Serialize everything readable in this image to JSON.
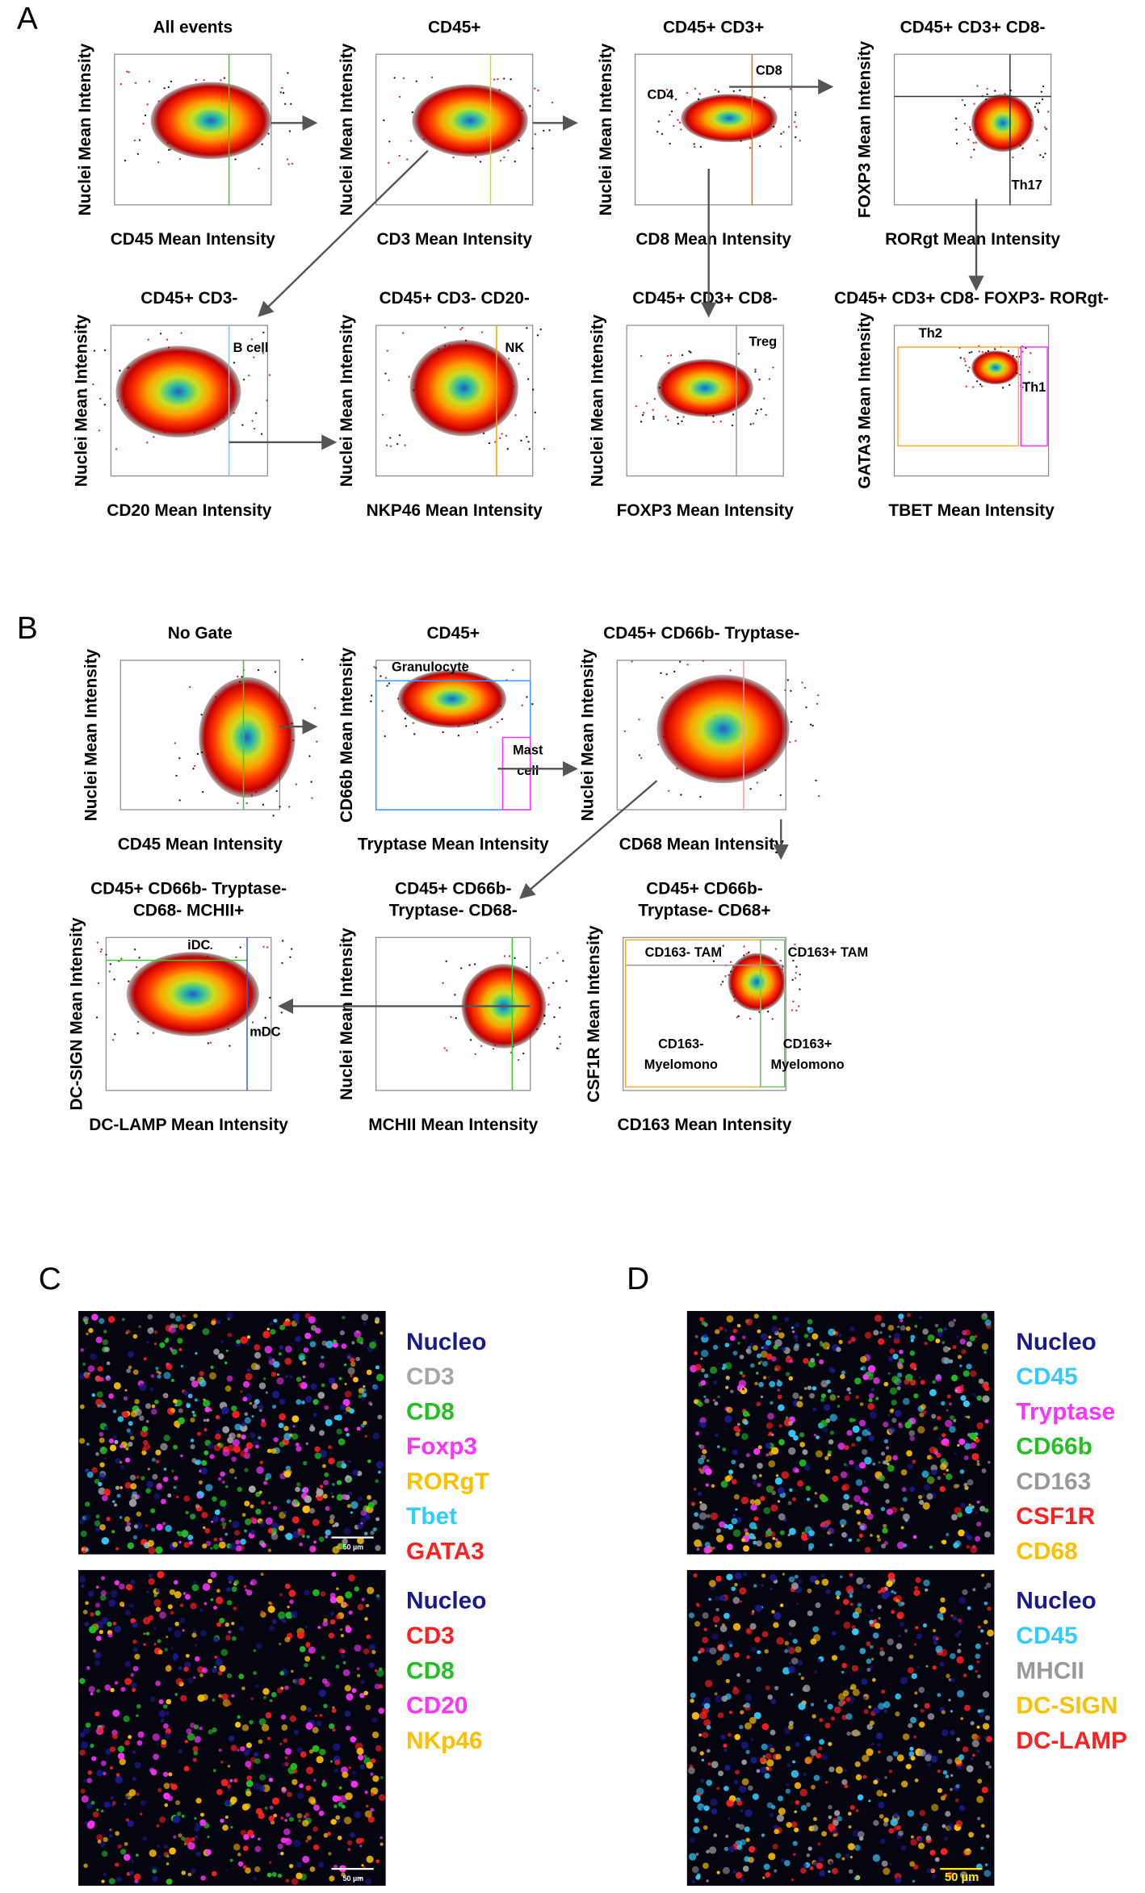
{
  "figure": {
    "panels": [
      {
        "label": "A",
        "plots": [
          {
            "title": [
              "All events"
            ],
            "x_label": "CD45 Mean Intensity",
            "y_label": "Nuclei Mean Intensity",
            "gates": []
          },
          {
            "title": [
              "CD45+"
            ],
            "x_label": "CD3 Mean Intensity",
            "y_label": "Nuclei Mean Intensity",
            "gates": []
          },
          {
            "title": [
              "CD45+ CD3+"
            ],
            "x_label": "CD8 Mean Intensity",
            "y_label": "Nuclei Mean Intensity",
            "gates": [
              [
                "CD4"
              ],
              [
                "CD8"
              ]
            ]
          },
          {
            "title": [
              "CD45+ CD3+ CD8-"
            ],
            "x_label": "RORgt Mean Intensity",
            "y_label": "FOXP3  Mean Intensity",
            "gates": [
              [
                "Th17"
              ]
            ]
          },
          {
            "title": [
              "CD45+ CD3-"
            ],
            "x_label": "CD20 Mean Intensity",
            "y_label": "Nuclei Mean Intensity",
            "gates": [
              [
                "B cell"
              ]
            ]
          },
          {
            "title": [
              "CD45+ CD3- CD20-"
            ],
            "x_label": "NKP46 Mean Intensity",
            "y_label": "Nuclei Mean Intensity",
            "gates": [
              [
                "NK"
              ]
            ]
          },
          {
            "title": [
              "CD45+ CD3+ CD8-"
            ],
            "x_label": "FOXP3 Mean Intensity",
            "y_label": "Nuclei Mean Intensity",
            "gates": [
              [
                "Treg"
              ]
            ]
          },
          {
            "title": [
              "CD45+ CD3+ CD8- FOXP3- RORgt-"
            ],
            "x_label": "TBET Mean Intensity",
            "y_label": "GATA3  Mean Intensity",
            "gates": [
              [
                "Th2"
              ],
              [
                "Th1"
              ]
            ]
          }
        ]
      },
      {
        "label": "B",
        "plots": [
          {
            "title": [
              "No Gate"
            ],
            "x_label": "CD45 Mean Intensity",
            "y_label": "Nuclei Mean Intensity",
            "gates": []
          },
          {
            "title": [
              "CD45+"
            ],
            "x_label": "Tryptase Mean Intensity",
            "y_label": "CD66b Mean Intensity",
            "gates": [
              [
                "Granulocyte"
              ],
              [
                "Mast",
                "cell"
              ]
            ]
          },
          {
            "title": [
              "CD45+ CD66b- Tryptase-"
            ],
            "x_label": "CD68 Mean Intensity",
            "y_label": "Nuclei Mean Intensity",
            "gates": []
          },
          {
            "title": [
              "CD45+ CD66b- Tryptase-",
              "CD68- MCHII+"
            ],
            "x_label": "DC-LAMP Mean Intensity",
            "y_label": "DC-SIGN Mean Intensity",
            "gates": [
              [
                "iDC"
              ],
              [
                "mDC"
              ]
            ]
          },
          {
            "title": [
              "CD45+ CD66b-",
              "Tryptase- CD68-"
            ],
            "x_label": "MCHII Mean Intensity",
            "y_label": "Nuclei Mean Intensity",
            "gates": []
          },
          {
            "title": [
              "CD45+ CD66b-",
              "Tryptase- CD68+"
            ],
            "x_label": "CD163 Mean Intensity",
            "y_label": "CSF1R Mean Intensity",
            "gates": [
              [
                "CD163- TAM"
              ],
              [
                "CD163+ TAM"
              ],
              [
                "CD163-",
                "Myelomono"
              ],
              [
                "CD163+",
                "Myelomono"
              ]
            ]
          }
        ]
      },
      {
        "label": "C",
        "images": [
          {
            "scale_bar": "50 µm",
            "legend": [
              {
                "text": "Nucleo",
                "color": "#1a1a8c"
              },
              {
                "text": "CD3",
                "color": "#a6a6a6"
              },
              {
                "text": "CD8",
                "color": "#22c022"
              },
              {
                "text": "Foxp3",
                "color": "#ff33ff"
              },
              {
                "text": "RORgT",
                "color": "#ffc000"
              },
              {
                "text": "Tbet",
                "color": "#33ccff"
              },
              {
                "text": "GATA3",
                "color": "#ff2020"
              }
            ]
          },
          {
            "scale_bar": "50 µm",
            "legend": [
              {
                "text": "Nucleo",
                "color": "#1a1a8c"
              },
              {
                "text": "CD3",
                "color": "#ff2020"
              },
              {
                "text": "CD8",
                "color": "#22c022"
              },
              {
                "text": "CD20",
                "color": "#ff33ff"
              },
              {
                "text": "NKp46",
                "color": "#ffc000"
              }
            ]
          }
        ]
      },
      {
        "label": "D",
        "images": [
          {
            "legend": [
              {
                "text": "Nucleo",
                "color": "#1a1a8c"
              },
              {
                "text": "CD45",
                "color": "#33ccff"
              },
              {
                "text": "Tryptase",
                "color": "#ff33ff"
              },
              {
                "text": "CD66b",
                "color": "#22c022"
              },
              {
                "text": "CD163",
                "color": "#999999"
              },
              {
                "text": "CSF1R",
                "color": "#ff2020"
              },
              {
                "text": "CD68",
                "color": "#ffc000"
              }
            ]
          },
          {
            "scale_bar": "50 µm",
            "legend": [
              {
                "text": "Nucleo",
                "color": "#1a1a8c"
              },
              {
                "text": "CD45",
                "color": "#33ccff"
              },
              {
                "text": "MHCII",
                "color": "#999999"
              },
              {
                "text": "DC-SIGN",
                "color": "#ffc000"
              },
              {
                "text": "DC-LAMP",
                "color": "#ff2020"
              }
            ]
          }
        ]
      }
    ]
  }
}
